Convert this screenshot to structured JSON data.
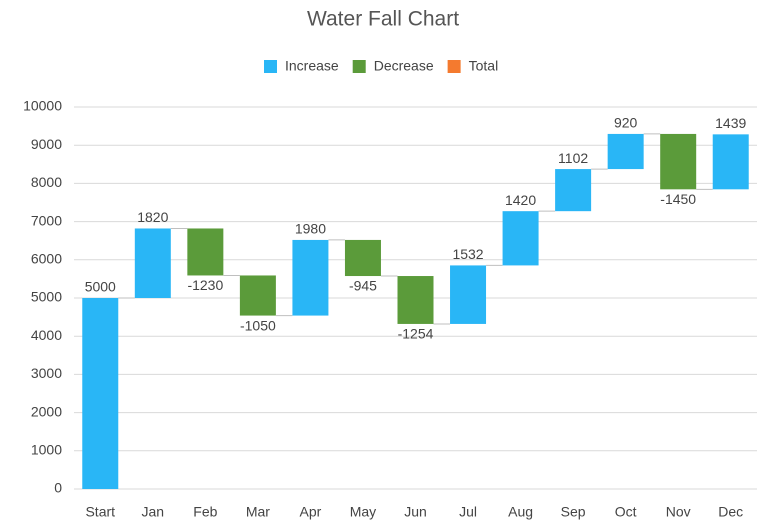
{
  "chart_data": {
    "type": "waterfall",
    "title": "Water Fall Chart",
    "legend": [
      {
        "name": "Increase",
        "color": "#29b6f6"
      },
      {
        "name": "Decrease",
        "color": "#5b9b3a"
      },
      {
        "name": "Total",
        "color": "#f47a2f"
      }
    ],
    "categories": [
      "Start",
      "Jan",
      "Feb",
      "Mar",
      "Apr",
      "May",
      "Jun",
      "Jul",
      "Aug",
      "Sep",
      "Oct",
      "Nov",
      "Dec"
    ],
    "values": [
      5000,
      1820,
      -1230,
      -1050,
      1980,
      -945,
      -1254,
      1532,
      1420,
      1102,
      920,
      -1450,
      1439
    ],
    "ylim": [
      0,
      10000
    ],
    "yticks": [
      0,
      1000,
      2000,
      3000,
      4000,
      5000,
      6000,
      7000,
      8000,
      9000,
      10000
    ],
    "grid": true
  }
}
